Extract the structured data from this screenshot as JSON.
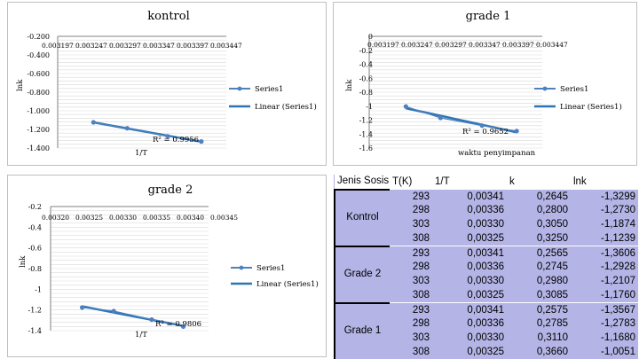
{
  "charts": [
    {
      "title": "kontrol",
      "xlabel": "1/T",
      "ylabel": "lnk",
      "x_tick_labels": [
        "0.003197",
        "0.003247",
        "0.003297",
        "0.003347",
        "0.003397",
        "0.003447"
      ],
      "y_tick_labels": [
        "-0.200",
        "-0.400",
        "-0.600",
        "-0.800",
        "-1.000",
        "-1.200",
        "-1.400"
      ],
      "legend": [
        "Series1",
        "Linear (Series1)"
      ],
      "r2_label": "R² = 0.9956",
      "colors": {
        "series": "#4f81bd",
        "trend": "#2e75b6",
        "grid": "#d9d9d9"
      }
    },
    {
      "title": "grade 1",
      "xlabel": "waktu penyimpanan",
      "ylabel": "lnk",
      "x_tick_labels": [
        "0.003197",
        "0.003247",
        "0.003297",
        "0.003347",
        "0.003397",
        "0.003447"
      ],
      "y_tick_labels": [
        "0",
        "-0.2",
        "-0.4",
        "-0.6",
        "-0.8",
        "-1",
        "-1.2",
        "-1.4",
        "-1.6"
      ],
      "legend": [
        "Series1",
        "Linear (Series1)"
      ],
      "r2_label": "R² = 0.9652",
      "colors": {
        "series": "#4f81bd",
        "trend": "#2e75b6",
        "grid": "#d9d9d9"
      }
    },
    {
      "title": "grade 2",
      "xlabel": "1/T",
      "ylabel": "lnk",
      "x_tick_labels": [
        "0.00320",
        "0.00325",
        "0.00330",
        "0.00335",
        "0.00340",
        "0.00345"
      ],
      "y_tick_labels": [
        "-0.2",
        "-0.4",
        "-0.6",
        "-0.8",
        "-1",
        "-1.2",
        "-1.4"
      ],
      "legend": [
        "Series1",
        "Linear (Series1)"
      ],
      "r2_label": "R² = 0.9806",
      "colors": {
        "series": "#4f81bd",
        "trend": "#2e75b6",
        "grid": "#d9d9d9"
      }
    }
  ],
  "chart_data": [
    {
      "type": "scatter",
      "title": "kontrol",
      "xlabel": "1/T",
      "ylabel": "lnk",
      "x": [
        0.00325,
        0.0033,
        0.00336,
        0.00341
      ],
      "series": [
        {
          "name": "Series1",
          "values": [
            -1.1239,
            -1.1874,
            -1.273,
            -1.3299
          ]
        }
      ],
      "trendline": "linear",
      "xlim": [
        0.003197,
        0.003447
      ],
      "ylim": [
        -1.4,
        -0.2
      ],
      "r2": 0.9956,
      "legend": "right"
    },
    {
      "type": "scatter",
      "title": "grade 1",
      "xlabel": "waktu penyimpanan",
      "ylabel": "lnk",
      "x": [
        0.00325,
        0.0033,
        0.00336,
        0.00341
      ],
      "series": [
        {
          "name": "Series1",
          "values": [
            -1.0051,
            -1.168,
            -1.2783,
            -1.3567
          ]
        }
      ],
      "trendline": "linear",
      "xlim": [
        0.003197,
        0.003447
      ],
      "ylim": [
        -1.6,
        0
      ],
      "r2": 0.9652,
      "legend": "right"
    },
    {
      "type": "scatter",
      "title": "grade 2",
      "xlabel": "1/T",
      "ylabel": "lnk",
      "x": [
        0.00325,
        0.0033,
        0.00336,
        0.00341
      ],
      "series": [
        {
          "name": "Series1",
          "values": [
            -1.176,
            -1.2107,
            -1.2928,
            -1.3606
          ]
        }
      ],
      "trendline": "linear",
      "xlim": [
        0.0032,
        0.00345
      ],
      "ylim": [
        -1.4,
        -0.2
      ],
      "r2": 0.9806,
      "legend": "right"
    }
  ],
  "table": {
    "headers": [
      "Jenis Sosis",
      "T(K)",
      "1/T",
      "k",
      "lnk"
    ],
    "groups": [
      {
        "name": "Kontrol",
        "rows": [
          [
            "293",
            "0,00341",
            "0,2645",
            "-1,3299"
          ],
          [
            "298",
            "0,00336",
            "0,2800",
            "-1,2730"
          ],
          [
            "303",
            "0,00330",
            "0,3050",
            "-1,1874"
          ],
          [
            "308",
            "0,00325",
            "0,3250",
            "-1,1239"
          ]
        ]
      },
      {
        "name": "Grade 2",
        "rows": [
          [
            "293",
            "0,00341",
            "0,2565",
            "-1,3606"
          ],
          [
            "298",
            "0,00336",
            "0,2745",
            "-1,2928"
          ],
          [
            "303",
            "0,00330",
            "0,2980",
            "-1,2107"
          ],
          [
            "308",
            "0,00325",
            "0,3085",
            "-1,1760"
          ]
        ]
      },
      {
        "name": "Grade 1",
        "rows": [
          [
            "293",
            "0,00341",
            "0,2575",
            "-1,3567"
          ],
          [
            "298",
            "0,00336",
            "0,2785",
            "-1,2783"
          ],
          [
            "303",
            "0,00330",
            "0,3110",
            "-1,1680"
          ],
          [
            "308",
            "0,00325",
            "0,3660",
            "-1,0051"
          ]
        ]
      }
    ]
  }
}
